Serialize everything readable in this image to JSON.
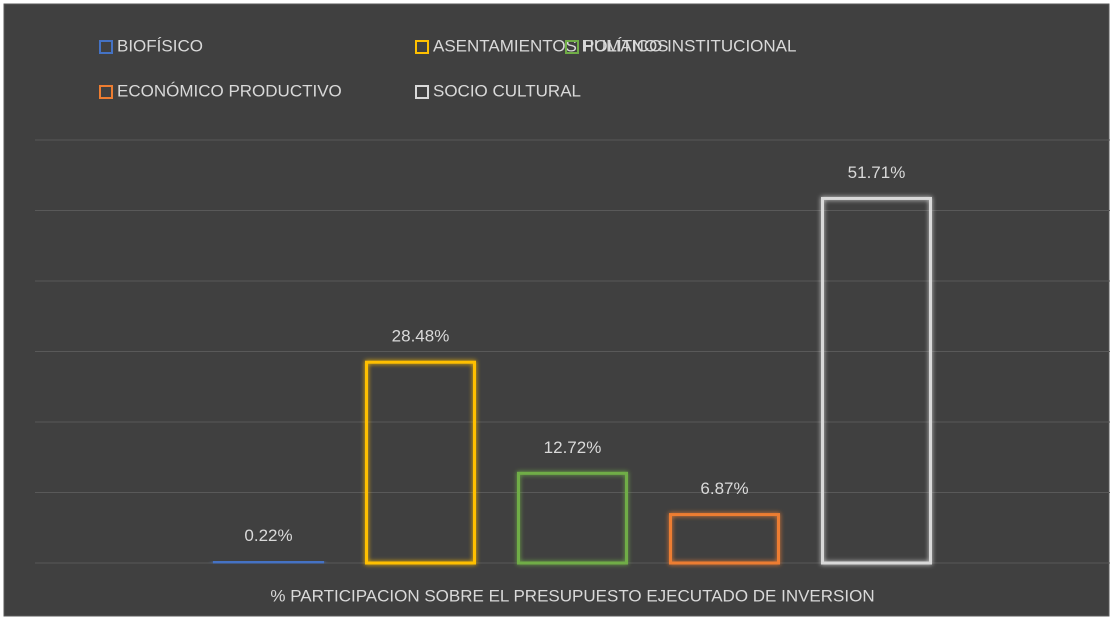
{
  "chart_data": {
    "type": "bar",
    "categories": [
      "% PARTICIPACION SOBRE EL PRESUPUESTO EJECUTADO DE INVERSION"
    ],
    "series": [
      {
        "name": "BIOFÍSICO",
        "color": "#4472c4",
        "values": [
          0.22
        ],
        "value_labels": [
          "0.22%"
        ]
      },
      {
        "name": "ASENTAMIENTOS HUMANOS",
        "color": "#ffc000",
        "values": [
          28.48
        ],
        "value_labels": [
          "28.48%"
        ]
      },
      {
        "name": "POLÍTICO INSTITUCIONAL",
        "color": "#70ad47",
        "values": [
          12.72
        ],
        "value_labels": [
          "12.72%"
        ]
      },
      {
        "name": "ECONÓMICO PRODUCTIVO",
        "color": "#ed7d31",
        "values": [
          6.87
        ],
        "value_labels": [
          "6.87%"
        ]
      },
      {
        "name": "SOCIO CULTURAL",
        "color": "#d9d9d9",
        "values": [
          51.71
        ],
        "value_labels": [
          "51.71%"
        ]
      }
    ],
    "ylim": [
      0,
      60
    ],
    "yticks": [
      0,
      10,
      20,
      30,
      40,
      50,
      60
    ],
    "grid": true,
    "legend": "top"
  }
}
